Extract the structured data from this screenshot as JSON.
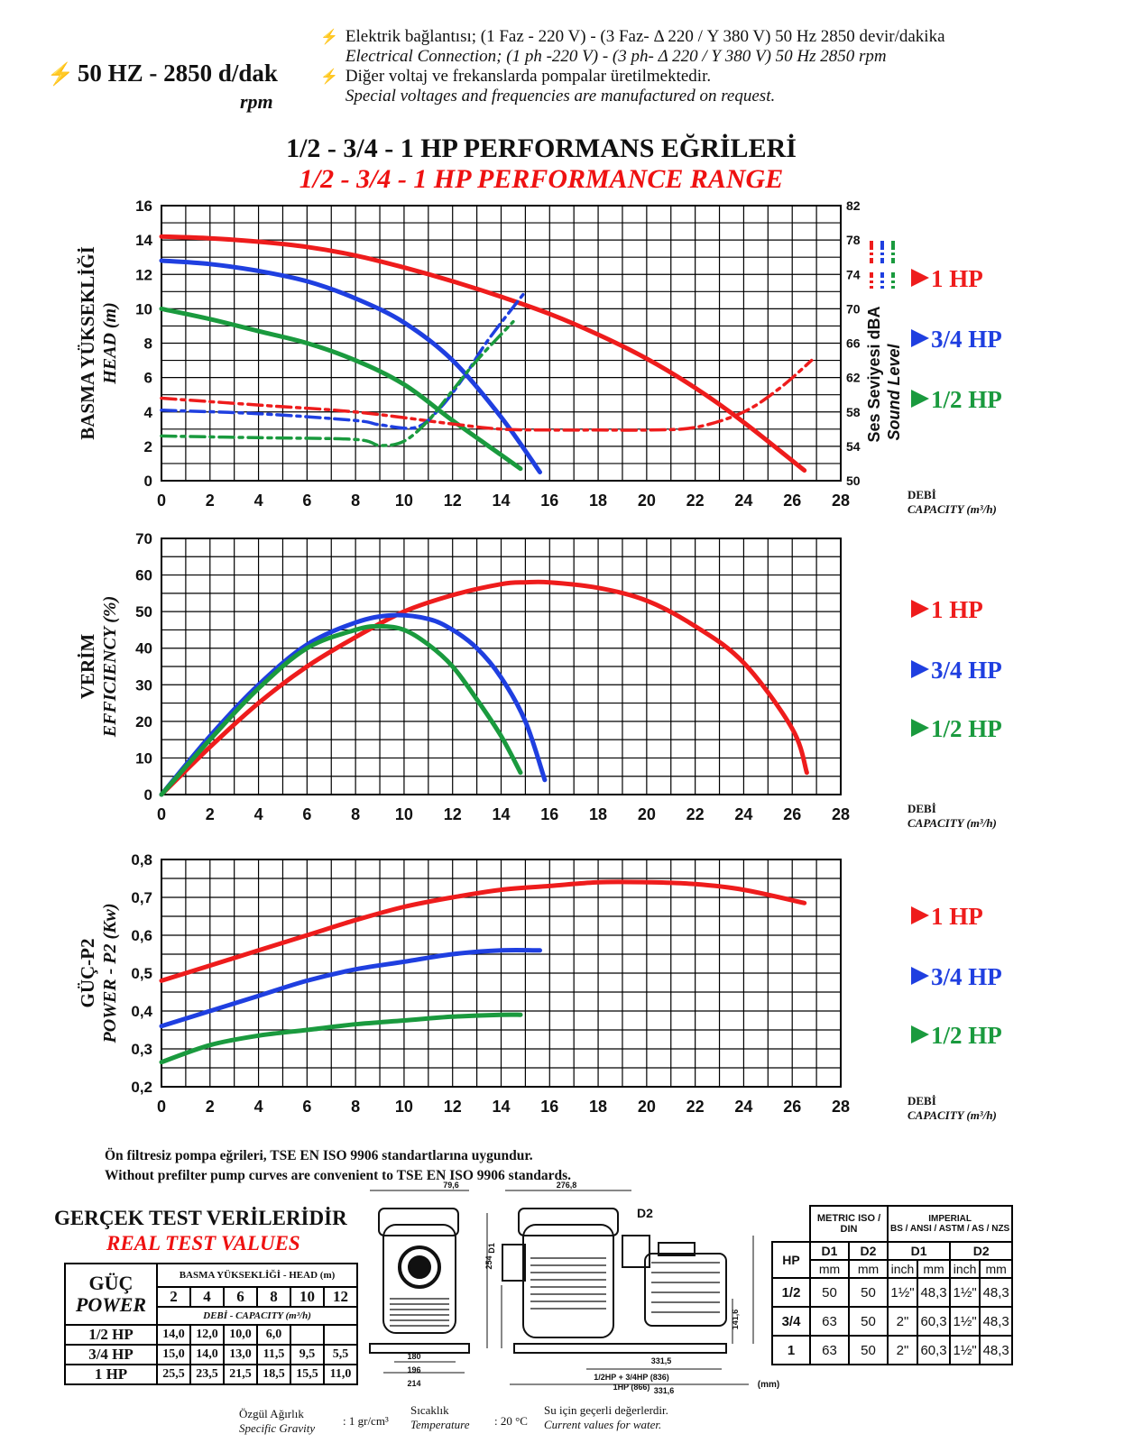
{
  "header": {
    "left_label": "50 HZ - 2850 d/dak",
    "left_sub": "rpm",
    "lines": [
      "Elektrik bağlantısı; (1 Faz - 220 V) - (3 Faz- Δ 220 / Y 380 V) 50 Hz 2850 devir/dakika",
      "Electrical Connection; (1 ph -220 V) - (3 ph- Δ 220 / Y 380 V) 50 Hz 2850 rpm",
      "Diğer voltaj ve frekanslarda pompalar üretilmektedir.",
      "Special voltages and frequencies  are manufactured on request."
    ]
  },
  "title_tr": "1/2 - 3/4 - 1 HP PERFORMANS EĞRİLERİ",
  "title_en": "1/2 - 3/4 - 1 HP PERFORMANCE RANGE",
  "colors": {
    "hp1": "#ee1c1c",
    "hp34": "#1f3fe0",
    "hp12": "#1a9a3e"
  },
  "legend": [
    "1 HP",
    "3/4 HP",
    "1/2 HP"
  ],
  "x_label_tr": "DEBİ",
  "x_label_en": "CAPACITY (m³/h)",
  "chart_data": [
    {
      "type": "line",
      "ylabel_tr": "BASMA YÜKSEKLİĞİ",
      "ylabel_en": "HEAD (m)",
      "y2label_tr": "Ses Seviyesi dBA",
      "y2label_en": "Sound Level",
      "xlim": [
        0,
        28
      ],
      "ylim": [
        0,
        16
      ],
      "y2lim": [
        50,
        82
      ],
      "xticks": [
        "0",
        "2",
        "4",
        "6",
        "8",
        "10",
        "12",
        "14",
        "16",
        "18",
        "20",
        "22",
        "24",
        "26",
        "28"
      ],
      "yticks": [
        "0",
        "2",
        "4",
        "6",
        "8",
        "10",
        "12",
        "14",
        "16"
      ],
      "y2ticks": [
        "50",
        "54",
        "58",
        "62",
        "66",
        "70",
        "74",
        "78",
        "82"
      ],
      "grid": true,
      "series": [
        {
          "name": "1 HP",
          "color": "hp1",
          "x": [
            0,
            2,
            4,
            6,
            8,
            10,
            12,
            14,
            16,
            18,
            20,
            22,
            24,
            26.5
          ],
          "y": [
            14.2,
            14.1,
            13.9,
            13.6,
            13.1,
            12.4,
            11.6,
            10.7,
            9.7,
            8.5,
            7.1,
            5.4,
            3.4,
            0.6
          ]
        },
        {
          "name": "3/4 HP",
          "color": "hp34",
          "x": [
            0,
            2,
            4,
            6,
            8,
            10,
            12,
            14,
            15.6
          ],
          "y": [
            12.8,
            12.6,
            12.2,
            11.6,
            10.6,
            9.2,
            7.0,
            3.7,
            0.5
          ]
        },
        {
          "name": "1/2 HP",
          "color": "hp12",
          "x": [
            0,
            2,
            4,
            6,
            8,
            10,
            12,
            14,
            14.8
          ],
          "y": [
            10.0,
            9.4,
            8.7,
            8.0,
            7.0,
            5.6,
            3.5,
            1.5,
            0.7
          ]
        },
        {
          "name": "1 HP",
          "color": "hp1",
          "dashed": true,
          "axis": "y2",
          "x": [
            0,
            4,
            8,
            12,
            14,
            16,
            18,
            20,
            22,
            24,
            25.5,
            26.8
          ],
          "y": [
            59.6,
            58.8,
            58.0,
            56.6,
            56.0,
            55.9,
            55.9,
            55.9,
            56.2,
            58.0,
            60.8,
            64.0
          ]
        },
        {
          "name": "3/4 HP",
          "color": "hp34",
          "dashed": true,
          "axis": "y2",
          "x": [
            0,
            4,
            8,
            9,
            10.5,
            11.5,
            12.5,
            13.5,
            15
          ],
          "y": [
            58.2,
            57.8,
            57.0,
            56.5,
            56.2,
            58.5,
            62.2,
            66.5,
            72.0
          ]
        },
        {
          "name": "1/2 HP",
          "color": "hp12",
          "dashed": true,
          "axis": "y2",
          "x": [
            0,
            4,
            8,
            9,
            10,
            11,
            12,
            13,
            14.5
          ],
          "y": [
            55.2,
            55.0,
            54.8,
            54.1,
            54.6,
            57.0,
            60.5,
            64.0,
            68.5
          ]
        }
      ]
    },
    {
      "type": "line",
      "ylabel_tr": "VERİM",
      "ylabel_en": "EFFICIENCY (%)",
      "xlim": [
        0,
        28
      ],
      "ylim": [
        0,
        70
      ],
      "xticks": [
        "0",
        "2",
        "4",
        "6",
        "8",
        "10",
        "12",
        "14",
        "16",
        "18",
        "20",
        "22",
        "24",
        "26",
        "28"
      ],
      "yticks": [
        "0",
        "10",
        "20",
        "30",
        "40",
        "50",
        "60",
        "70"
      ],
      "grid": true,
      "series": [
        {
          "name": "1 HP",
          "color": "hp1",
          "x": [
            0,
            2,
            4,
            6,
            8,
            10,
            12,
            14,
            15,
            16,
            18,
            20,
            22,
            24,
            26,
            26.6
          ],
          "y": [
            0,
            13,
            25,
            35,
            43,
            50,
            54.5,
            57.5,
            58,
            58,
            56.5,
            53,
            46,
            36,
            18,
            6
          ]
        },
        {
          "name": "3/4 HP",
          "color": "hp34",
          "x": [
            0,
            2,
            4,
            6,
            8,
            9.5,
            11,
            12,
            13,
            14,
            15,
            15.8
          ],
          "y": [
            0,
            16,
            30,
            41,
            47,
            49,
            48,
            45,
            40,
            32,
            20,
            4
          ]
        },
        {
          "name": "1/2 HP",
          "color": "hp12",
          "x": [
            0,
            2,
            4,
            6,
            8,
            9,
            10,
            11,
            12,
            13,
            14,
            14.8
          ],
          "y": [
            0,
            15,
            29,
            40,
            45,
            46,
            45,
            41,
            35,
            26,
            16,
            6
          ]
        }
      ]
    },
    {
      "type": "line",
      "ylabel_tr": "GÜÇ-P2",
      "ylabel_en": "POWER - P2 (Kw)",
      "xlim": [
        0,
        28
      ],
      "ylim": [
        0.2,
        0.8
      ],
      "xticks": [
        "0",
        "2",
        "4",
        "6",
        "8",
        "10",
        "12",
        "14",
        "16",
        "18",
        "20",
        "22",
        "24",
        "26",
        "28"
      ],
      "yticks": [
        "0,2",
        "0,3",
        "0,4",
        "0,5",
        "0,6",
        "0,7",
        "0,8"
      ],
      "grid": true,
      "series": [
        {
          "name": "1 HP",
          "color": "hp1",
          "x": [
            0,
            2,
            4,
            6,
            8,
            10,
            12,
            14,
            16,
            18,
            20,
            22,
            24,
            26.5
          ],
          "y": [
            0.48,
            0.52,
            0.56,
            0.6,
            0.64,
            0.675,
            0.7,
            0.72,
            0.73,
            0.74,
            0.74,
            0.735,
            0.72,
            0.685
          ]
        },
        {
          "name": "3/4 HP",
          "color": "hp34",
          "x": [
            0,
            2,
            4,
            6,
            8,
            10,
            12,
            14,
            15.6
          ],
          "y": [
            0.36,
            0.4,
            0.44,
            0.48,
            0.51,
            0.53,
            0.55,
            0.56,
            0.56
          ]
        },
        {
          "name": "1/2 HP",
          "color": "hp12",
          "x": [
            0,
            2,
            4,
            6,
            8,
            10,
            12,
            14,
            14.8
          ],
          "y": [
            0.265,
            0.31,
            0.335,
            0.35,
            0.365,
            0.375,
            0.385,
            0.39,
            0.39
          ]
        }
      ]
    }
  ],
  "notes": [
    "Ön filtresiz pompa eğrileri, TSE EN ISO 9906 standartlarına uygundur.",
    "Without prefilter pump curves are convenient to TSE EN ISO 9906 standards."
  ],
  "test": {
    "title_tr": "GERÇEK TEST VERİLERİDİR",
    "title_en": "REAL TEST VALUES",
    "power_tr": "GÜÇ",
    "power_en": "POWER",
    "head_label": "BASMA YÜKSEKLİĞİ - HEAD (m)",
    "heads": [
      "2",
      "4",
      "6",
      "8",
      "10",
      "12"
    ],
    "capacity_label": "DEBİ - CAPACITY (m³/h)",
    "rows": [
      {
        "hp": "1/2 HP",
        "values": [
          "14,0",
          "12,0",
          "10,0",
          "6,0",
          "",
          ""
        ]
      },
      {
        "hp": "3/4 HP",
        "values": [
          "15,0",
          "14,0",
          "13,0",
          "11,5",
          "9,5",
          "5,5"
        ]
      },
      {
        "hp": "1 HP",
        "values": [
          "25,5",
          "23,5",
          "21,5",
          "18,5",
          "15,5",
          "11,0"
        ]
      }
    ]
  },
  "drawing": {
    "dims": [
      "79,6",
      "276,8",
      "D2",
      "D1",
      "196",
      "254",
      "331,5",
      "141,6",
      "331,6",
      "1/2HP + 3/4HP (836)",
      "1HP (866)",
      "180",
      "214"
    ],
    "unit": "(mm)"
  },
  "dims_table": {
    "metric": "METRIC ISO / DIN",
    "imperial": "IMPERIAL",
    "imperial_sub": "BS / ANSI / ASTM / AS / NZS",
    "hp": "HP",
    "d1": "D1",
    "d2": "D2",
    "mm": "mm",
    "inch": "inch",
    "rows": [
      [
        "1/2",
        "50",
        "50",
        "1½\"",
        "48,3",
        "1½\"",
        "48,3"
      ],
      [
        "3/4",
        "63",
        "50",
        "2\"",
        "60,3",
        "1½\"",
        "48,3"
      ],
      [
        "1",
        "63",
        "50",
        "2\"",
        "60,3",
        "1½\"",
        "48,3"
      ]
    ]
  },
  "footer": {
    "sg_tr": "Özgül Ağırlık",
    "sg_en": "Specific Gravity",
    "sg_val": ": 1 gr/cm³",
    "temp_tr": "Sıcaklık",
    "temp_en": "Temperature",
    "temp_val": ": 20 °C",
    "water_tr": "Su için geçerli değerlerdir.",
    "water_en": "Current values for water."
  }
}
